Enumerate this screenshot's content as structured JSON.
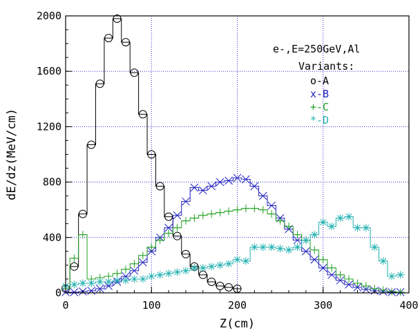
{
  "chart_data": {
    "type": "line",
    "title": "",
    "xlabel": "Z(cm)",
    "ylabel": "dE/dz(MeV/cm)",
    "xlim": [
      0,
      400
    ],
    "ylim": [
      0,
      2000
    ],
    "x_ticks": [
      "0",
      "100",
      "200",
      "300",
      "400"
    ],
    "y_ticks": [
      "0",
      "400",
      "800",
      "1200",
      "1600",
      "2000"
    ],
    "grid": true,
    "legend_position": "top-right",
    "annotation": "e-,E=250GeV,Al",
    "legend_title": "Variants:",
    "series": [
      {
        "name": "A",
        "legend_label": "o-A",
        "marker": "circle",
        "color": "#000000",
        "x": [
          0,
          10,
          20,
          30,
          40,
          50,
          60,
          70,
          80,
          90,
          100,
          110,
          120,
          130,
          140,
          150,
          160,
          170,
          180,
          190,
          200
        ],
        "y": [
          30,
          190,
          570,
          1070,
          1510,
          1840,
          1980,
          1810,
          1590,
          1290,
          1000,
          770,
          550,
          410,
          280,
          190,
          130,
          80,
          50,
          40,
          30
        ]
      },
      {
        "name": "B",
        "legend_label": "x-B",
        "marker": "x",
        "color": "#2020c0",
        "x": [
          0,
          10,
          20,
          30,
          40,
          50,
          60,
          70,
          80,
          90,
          100,
          110,
          120,
          130,
          140,
          150,
          160,
          170,
          180,
          190,
          200,
          210,
          220,
          230,
          240,
          250,
          260,
          270,
          280,
          290,
          300,
          310,
          320,
          330,
          340,
          350,
          360,
          370,
          380,
          390
        ],
        "y": [
          5,
          5,
          10,
          15,
          30,
          50,
          80,
          120,
          160,
          220,
          300,
          400,
          470,
          560,
          660,
          760,
          740,
          770,
          800,
          810,
          830,
          820,
          770,
          700,
          630,
          540,
          460,
          380,
          300,
          240,
          180,
          130,
          90,
          60,
          40,
          25,
          15,
          10,
          5,
          5
        ]
      },
      {
        "name": "C",
        "legend_label": "+-C",
        "marker": "plus",
        "color": "#20a020",
        "x": [
          0,
          10,
          20,
          30,
          40,
          50,
          60,
          70,
          80,
          90,
          100,
          110,
          120,
          130,
          140,
          150,
          160,
          170,
          180,
          190,
          200,
          210,
          220,
          230,
          240,
          250,
          260,
          270,
          280,
          290,
          300,
          310,
          320,
          330,
          340,
          350,
          360,
          370,
          380,
          390
        ],
        "y": [
          30,
          250,
          420,
          100,
          110,
          120,
          140,
          170,
          210,
          270,
          330,
          380,
          430,
          470,
          520,
          540,
          560,
          570,
          580,
          590,
          600,
          610,
          610,
          600,
          570,
          520,
          480,
          420,
          380,
          310,
          240,
          180,
          130,
          100,
          70,
          50,
          30,
          20,
          10,
          5
        ]
      },
      {
        "name": "D",
        "legend_label": "*-D",
        "marker": "star",
        "color": "#20b0b0",
        "x": [
          0,
          10,
          20,
          30,
          40,
          50,
          60,
          70,
          80,
          90,
          100,
          110,
          120,
          130,
          140,
          150,
          160,
          170,
          180,
          190,
          200,
          210,
          220,
          230,
          240,
          250,
          260,
          270,
          280,
          290,
          300,
          310,
          320,
          330,
          340,
          350,
          360,
          370,
          380,
          390
        ],
        "y": [
          50,
          60,
          70,
          70,
          80,
          80,
          90,
          90,
          100,
          100,
          120,
          130,
          140,
          150,
          160,
          180,
          180,
          190,
          200,
          210,
          240,
          230,
          330,
          330,
          330,
          320,
          310,
          330,
          380,
          420,
          510,
          480,
          540,
          550,
          470,
          470,
          330,
          230,
          120,
          130
        ]
      }
    ]
  }
}
